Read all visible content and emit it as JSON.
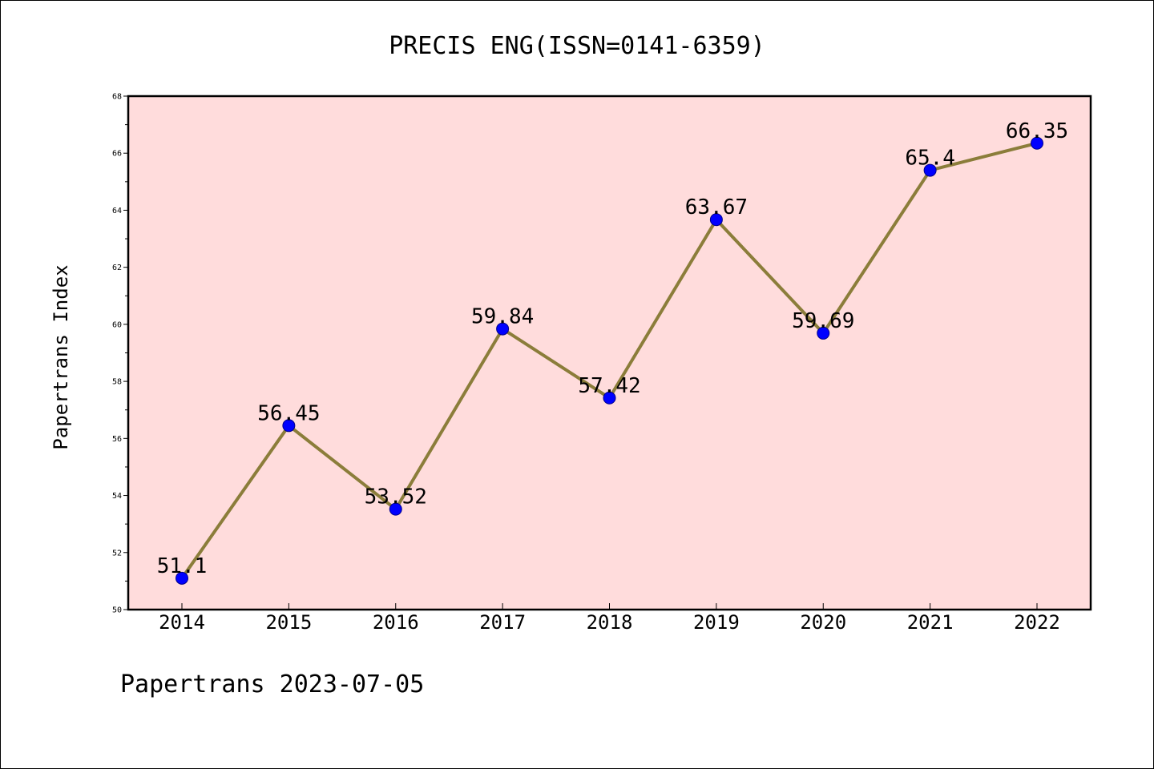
{
  "chart_data": {
    "type": "line",
    "title": "PRECIS ENG(ISSN=0141-6359)",
    "xlabel": "",
    "ylabel": "Papertrans Index",
    "categories": [
      "2014",
      "2015",
      "2016",
      "2017",
      "2018",
      "2019",
      "2020",
      "2021",
      "2022"
    ],
    "values": [
      51.1,
      56.45,
      53.52,
      59.84,
      57.42,
      63.67,
      59.69,
      65.4,
      66.35
    ],
    "data_labels": [
      "51.1",
      "56.45",
      "53.52",
      "59.84",
      "57.42",
      "63.67",
      "59.69",
      "65.4",
      "66.35"
    ],
    "ylim": [
      50,
      68
    ],
    "yticks": [
      "50",
      "52",
      "54",
      "56",
      "58",
      "60",
      "62",
      "64",
      "66",
      "68"
    ],
    "grid": false,
    "legend": "none",
    "colors": {
      "line": "#8b7d3a",
      "marker": "#0000ff",
      "marker_edge": "#00008b",
      "plot_background": "#ffdcdc",
      "axes": "#000000"
    }
  },
  "footer": {
    "text": "Papertrans 2023-07-05"
  }
}
